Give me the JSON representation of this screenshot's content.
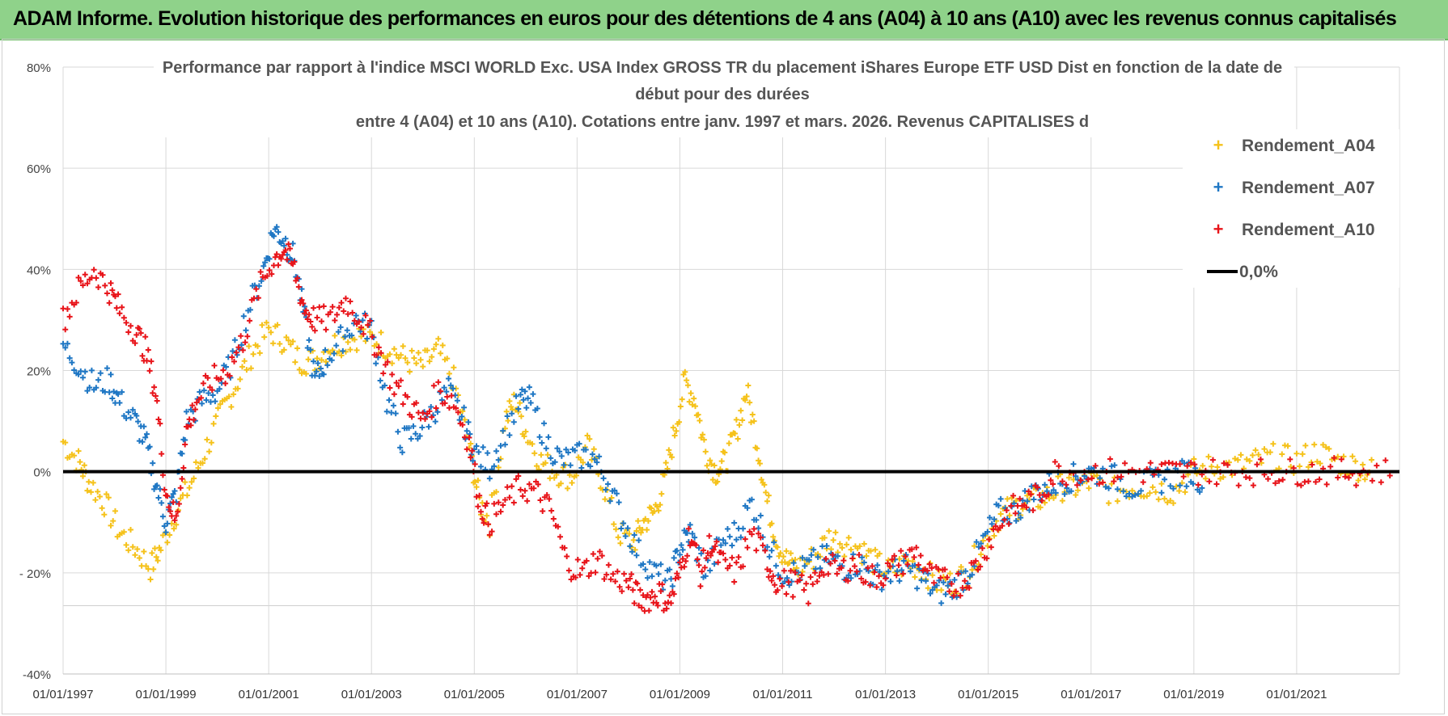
{
  "banner": {
    "title": "ADAM Informe. Evolution historique des performances en euros pour des détentions de 4 ans (A04) à 10 ans (A10) avec les revenus connus capitalisés"
  },
  "chart_data": {
    "type": "scatter",
    "title_lines": [
      "Performance par rapport à l'indice MSCI WORLD Exc. USA Index GROSS TR  du placement iShares Europe ETF USD Dist en fonction de la date de",
      "début pour des durées",
      "entre 4 (A04) et 10 ans (A10). Cotations entre janv. 1997 et mars. 2026. Revenus CAPITALISES d"
    ],
    "x_range": [
      1997.0,
      2023.0
    ],
    "x_ticks": [
      {
        "year": 1997,
        "label": "01/01/1997"
      },
      {
        "year": 1999,
        "label": "01/01/1999"
      },
      {
        "year": 2001,
        "label": "01/01/2001"
      },
      {
        "year": 2003,
        "label": "01/01/2003"
      },
      {
        "year": 2005,
        "label": "01/01/2005"
      },
      {
        "year": 2007,
        "label": "01/01/2007"
      },
      {
        "year": 2009,
        "label": "01/01/2009"
      },
      {
        "year": 2011,
        "label": "01/01/2011"
      },
      {
        "year": 2013,
        "label": "01/01/2013"
      },
      {
        "year": 2015,
        "label": "01/01/2015"
      },
      {
        "year": 2017,
        "label": "01/01/2017"
      },
      {
        "year": 2019,
        "label": "01/01/2019"
      },
      {
        "year": 2021,
        "label": "01/01/2021"
      }
    ],
    "y_range": [
      -40,
      80
    ],
    "y_ticks": [
      {
        "value": 80,
        "label": "80%"
      },
      {
        "value": 60,
        "label": "60%"
      },
      {
        "value": 40,
        "label": "40%"
      },
      {
        "value": 20,
        "label": "20%"
      },
      {
        "value": 0,
        "label": "0%"
      },
      {
        "value": -20,
        "label": "- 20%"
      },
      {
        "value": -40,
        "label": "-40%"
      }
    ],
    "legend": [
      {
        "name": "Rendement_A04",
        "color": "#f5c21b",
        "marker": "+"
      },
      {
        "name": "Rendement_A07",
        "color": "#1f77c4",
        "marker": "+"
      },
      {
        "name": "Rendement_A10",
        "color": "#e8141a",
        "marker": "+"
      },
      {
        "name": "0,0%",
        "color": "#000000",
        "marker": "line"
      }
    ],
    "series": [
      {
        "name": "Rendement_A04",
        "color": "#f5c21b",
        "points": [
          [
            1997.0,
            6
          ],
          [
            1997.3,
            2
          ],
          [
            1997.5,
            -2
          ],
          [
            1997.8,
            -6
          ],
          [
            1998.1,
            -12
          ],
          [
            1998.4,
            -15
          ],
          [
            1998.7,
            -19
          ],
          [
            1998.9,
            -15
          ],
          [
            1999.2,
            -8
          ],
          [
            1999.5,
            -2
          ],
          [
            1999.8,
            5
          ],
          [
            2000.1,
            12
          ],
          [
            2000.4,
            18
          ],
          [
            2000.7,
            24
          ],
          [
            2001.0,
            28
          ],
          [
            2001.3,
            26
          ],
          [
            2001.6,
            22
          ],
          [
            2001.9,
            22
          ],
          [
            2002.2,
            25
          ],
          [
            2002.5,
            26
          ],
          [
            2002.8,
            27
          ],
          [
            2003.1,
            26
          ],
          [
            2003.4,
            24
          ],
          [
            2003.7,
            22
          ],
          [
            2004.0,
            21
          ],
          [
            2004.3,
            24
          ],
          [
            2004.6,
            18
          ],
          [
            2004.9,
            5
          ],
          [
            2005.1,
            -6
          ],
          [
            2005.3,
            -10
          ],
          [
            2005.6,
            10
          ],
          [
            2005.8,
            14
          ],
          [
            2006.0,
            8
          ],
          [
            2006.3,
            2
          ],
          [
            2006.6,
            0
          ],
          [
            2006.9,
            -1
          ],
          [
            2007.2,
            5
          ],
          [
            2007.5,
            -2
          ],
          [
            2007.8,
            -12
          ],
          [
            2008.1,
            -14
          ],
          [
            2008.3,
            -10
          ],
          [
            2008.5,
            -8
          ],
          [
            2008.7,
            -2
          ],
          [
            2008.9,
            8
          ],
          [
            2009.1,
            18
          ],
          [
            2009.3,
            14
          ],
          [
            2009.5,
            4
          ],
          [
            2009.7,
            0
          ],
          [
            2009.9,
            2
          ],
          [
            2010.1,
            8
          ],
          [
            2010.3,
            16
          ],
          [
            2010.5,
            6
          ],
          [
            2010.7,
            -6
          ],
          [
            2010.9,
            -14
          ],
          [
            2011.1,
            -18
          ],
          [
            2011.3,
            -19
          ],
          [
            2011.6,
            -17
          ],
          [
            2011.9,
            -13
          ],
          [
            2012.2,
            -14
          ],
          [
            2012.5,
            -15
          ],
          [
            2012.8,
            -18
          ],
          [
            2013.1,
            -20
          ],
          [
            2013.4,
            -18
          ],
          [
            2013.7,
            -19
          ],
          [
            2014.0,
            -22
          ],
          [
            2014.3,
            -22
          ],
          [
            2014.6,
            -20
          ],
          [
            2014.9,
            -14
          ],
          [
            2015.2,
            -9
          ],
          [
            2015.5,
            -7
          ],
          [
            2015.8,
            -6
          ],
          [
            2016.1,
            -5
          ],
          [
            2016.4,
            -3
          ],
          [
            2016.7,
            -3
          ],
          [
            2017.0,
            -2
          ],
          [
            2017.4,
            -4
          ],
          [
            2017.8,
            -3
          ],
          [
            2018.2,
            -3
          ],
          [
            2018.6,
            -4
          ],
          [
            2019.0,
            0
          ],
          [
            2019.4,
            1
          ],
          [
            2019.8,
            1
          ],
          [
            2020.2,
            2
          ],
          [
            2020.6,
            3
          ],
          [
            2021.0,
            2
          ],
          [
            2021.4,
            4
          ],
          [
            2021.8,
            2
          ],
          [
            2022.2,
            1
          ],
          [
            2022.5,
            0
          ]
        ]
      },
      {
        "name": "Rendement_A07",
        "color": "#1f77c4",
        "points": [
          [
            1997.0,
            25
          ],
          [
            1997.3,
            21
          ],
          [
            1997.6,
            17
          ],
          [
            1997.9,
            18
          ],
          [
            1998.1,
            14
          ],
          [
            1998.4,
            10
          ],
          [
            1998.6,
            6
          ],
          [
            1998.8,
            -2
          ],
          [
            1999.0,
            -10
          ],
          [
            1999.2,
            -4
          ],
          [
            1999.4,
            10
          ],
          [
            1999.7,
            14
          ],
          [
            2000.0,
            16
          ],
          [
            2000.3,
            22
          ],
          [
            2000.6,
            32
          ],
          [
            2000.9,
            40
          ],
          [
            2001.1,
            48
          ],
          [
            2001.3,
            46
          ],
          [
            2001.5,
            42
          ],
          [
            2001.7,
            30
          ],
          [
            2001.9,
            18
          ],
          [
            2002.1,
            22
          ],
          [
            2002.4,
            26
          ],
          [
            2002.7,
            30
          ],
          [
            2003.0,
            28
          ],
          [
            2003.3,
            14
          ],
          [
            2003.6,
            6
          ],
          [
            2003.9,
            8
          ],
          [
            2004.2,
            12
          ],
          [
            2004.5,
            16
          ],
          [
            2004.8,
            10
          ],
          [
            2005.0,
            4
          ],
          [
            2005.3,
            1
          ],
          [
            2005.6,
            8
          ],
          [
            2005.9,
            14
          ],
          [
            2006.1,
            14
          ],
          [
            2006.4,
            6
          ],
          [
            2006.7,
            2
          ],
          [
            2007.0,
            3
          ],
          [
            2007.3,
            3
          ],
          [
            2007.6,
            -2
          ],
          [
            2007.9,
            -10
          ],
          [
            2008.2,
            -16
          ],
          [
            2008.5,
            -20
          ],
          [
            2008.8,
            -22
          ],
          [
            2009.0,
            -15
          ],
          [
            2009.2,
            -12
          ],
          [
            2009.5,
            -20
          ],
          [
            2009.8,
            -14
          ],
          [
            2010.1,
            -12
          ],
          [
            2010.4,
            -6
          ],
          [
            2010.7,
            -14
          ],
          [
            2011.0,
            -20
          ],
          [
            2011.3,
            -20
          ],
          [
            2011.6,
            -18
          ],
          [
            2011.9,
            -17
          ],
          [
            2012.2,
            -19
          ],
          [
            2012.5,
            -18
          ],
          [
            2012.8,
            -21
          ],
          [
            2013.1,
            -20
          ],
          [
            2013.4,
            -19
          ],
          [
            2013.7,
            -21
          ],
          [
            2014.0,
            -24
          ],
          [
            2014.3,
            -23
          ],
          [
            2014.6,
            -20
          ],
          [
            2014.9,
            -14
          ],
          [
            2015.2,
            -8
          ],
          [
            2015.5,
            -8
          ],
          [
            2015.8,
            -5
          ],
          [
            2016.1,
            -3
          ],
          [
            2016.4,
            -2
          ],
          [
            2016.7,
            -1
          ],
          [
            2017.0,
            0
          ],
          [
            2017.4,
            -1
          ],
          [
            2017.8,
            -3
          ],
          [
            2018.2,
            -2
          ],
          [
            2018.6,
            -1
          ],
          [
            2018.9,
            0
          ],
          [
            2019.2,
            -2
          ]
        ]
      },
      {
        "name": "Rendement_A10",
        "color": "#e8141a",
        "points": [
          [
            1997.0,
            30
          ],
          [
            1997.3,
            36
          ],
          [
            1997.6,
            40
          ],
          [
            1997.9,
            36
          ],
          [
            1998.1,
            32
          ],
          [
            1998.4,
            28
          ],
          [
            1998.6,
            24
          ],
          [
            1998.8,
            16
          ],
          [
            1999.0,
            -4
          ],
          [
            1999.2,
            -10
          ],
          [
            1999.4,
            8
          ],
          [
            1999.6,
            14
          ],
          [
            1999.9,
            18
          ],
          [
            2000.2,
            20
          ],
          [
            2000.5,
            26
          ],
          [
            2000.8,
            36
          ],
          [
            2001.1,
            42
          ],
          [
            2001.3,
            44
          ],
          [
            2001.5,
            40
          ],
          [
            2001.7,
            32
          ],
          [
            2001.9,
            30
          ],
          [
            2002.2,
            30
          ],
          [
            2002.5,
            34
          ],
          [
            2002.8,
            30
          ],
          [
            2003.1,
            25
          ],
          [
            2003.4,
            18
          ],
          [
            2003.7,
            14
          ],
          [
            2004.0,
            10
          ],
          [
            2004.3,
            16
          ],
          [
            2004.6,
            14
          ],
          [
            2004.9,
            6
          ],
          [
            2005.1,
            -6
          ],
          [
            2005.3,
            -10
          ],
          [
            2005.6,
            -6
          ],
          [
            2005.9,
            -3
          ],
          [
            2006.2,
            -4
          ],
          [
            2006.5,
            -8
          ],
          [
            2006.8,
            -18
          ],
          [
            2007.1,
            -20
          ],
          [
            2007.4,
            -17
          ],
          [
            2007.7,
            -21
          ],
          [
            2008.0,
            -22
          ],
          [
            2008.2,
            -25
          ],
          [
            2008.4,
            -25
          ],
          [
            2008.6,
            -24
          ],
          [
            2008.8,
            -26
          ],
          [
            2009.0,
            -20
          ],
          [
            2009.2,
            -12
          ],
          [
            2009.4,
            -20
          ],
          [
            2009.6,
            -14
          ],
          [
            2009.8,
            -18
          ],
          [
            2010.1,
            -20
          ],
          [
            2010.4,
            -12
          ],
          [
            2010.7,
            -18
          ],
          [
            2010.9,
            -22
          ],
          [
            2011.2,
            -22
          ],
          [
            2011.5,
            -24
          ],
          [
            2011.8,
            -18
          ],
          [
            2012.1,
            -20
          ],
          [
            2012.4,
            -18
          ],
          [
            2012.7,
            -21
          ],
          [
            2013.0,
            -20
          ],
          [
            2013.3,
            -18
          ],
          [
            2013.6,
            -16
          ],
          [
            2013.9,
            -21
          ],
          [
            2014.2,
            -22
          ],
          [
            2014.5,
            -22
          ],
          [
            2014.8,
            -18
          ],
          [
            2015.1,
            -12
          ],
          [
            2015.4,
            -8
          ],
          [
            2015.7,
            -6
          ],
          [
            2016.0,
            -5
          ],
          [
            2016.3,
            0
          ],
          [
            2016.8,
            0
          ],
          [
            2017.3,
            0
          ],
          [
            2017.8,
            0
          ],
          [
            2018.3,
            0
          ],
          [
            2018.8,
            0
          ],
          [
            2019.3,
            0
          ],
          [
            2019.8,
            0
          ],
          [
            2020.3,
            0
          ],
          [
            2020.8,
            0
          ],
          [
            2021.3,
            0
          ],
          [
            2021.8,
            0
          ],
          [
            2022.3,
            0
          ],
          [
            2022.9,
            0
          ]
        ]
      }
    ],
    "zero_line": 0
  }
}
